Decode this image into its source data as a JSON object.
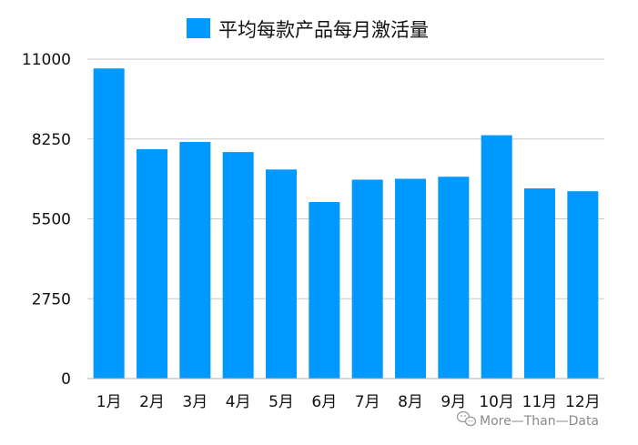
{
  "chart_data": {
    "type": "bar",
    "categories": [
      "1月",
      "2月",
      "3月",
      "4月",
      "5月",
      "6月",
      "7月",
      "8月",
      "9月",
      "10月",
      "11月",
      "12月"
    ],
    "series": [
      {
        "name": "平均每款产品每月激活量",
        "color": "#0099ff",
        "values": [
          10680,
          7900,
          8150,
          7800,
          7200,
          6080,
          6850,
          6880,
          6950,
          8380,
          6550,
          6450
        ]
      }
    ],
    "yticks": [
      "0",
      "2750",
      "5500",
      "8250",
      "11000"
    ],
    "ylim": [
      0,
      11000
    ],
    "grid": true,
    "legend_position": "top"
  },
  "watermark": {
    "text": "More—Than—Data",
    "icon": "wechat-icon"
  }
}
